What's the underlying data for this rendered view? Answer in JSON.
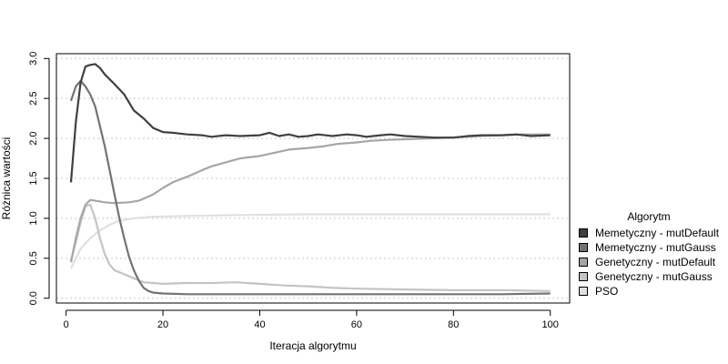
{
  "chart_data": {
    "type": "line",
    "title": "",
    "xlabel": "Iteracja algorytmu",
    "ylabel": "Różnica wartości",
    "xlim": [
      -2,
      104
    ],
    "ylim": [
      -0.06,
      3.06
    ],
    "xticks": [
      0,
      20,
      40,
      60,
      80,
      100
    ],
    "yticks": [
      0.0,
      0.5,
      1.0,
      1.5,
      2.0,
      2.5,
      3.0
    ],
    "ytick_labels": [
      "0.0",
      "0.5",
      "1.0",
      "1.5",
      "2.0",
      "2.5",
      "3.0"
    ],
    "grid": "horizontal dotted",
    "legend": {
      "title": "Algorytm",
      "placement": "right",
      "entries": [
        {
          "label": "Memetyczny - mutDefault",
          "color": "#404040"
        },
        {
          "label": "Memetyczny - mutGauss",
          "color": "#737373"
        },
        {
          "label": "Genetyczny - mutDefault",
          "color": "#a6a6a6"
        },
        {
          "label": "Genetyczny - mutGauss",
          "color": "#c4c4c4"
        },
        {
          "label": "PSO",
          "color": "#e0e0e0"
        }
      ]
    },
    "series": [
      {
        "name": "Memetyczny - mutDefault",
        "color": "#404040",
        "points": [
          [
            1,
            1.45
          ],
          [
            2,
            2.2
          ],
          [
            3,
            2.7
          ],
          [
            4,
            2.9
          ],
          [
            5,
            2.92
          ],
          [
            6,
            2.93
          ],
          [
            7,
            2.88
          ],
          [
            8,
            2.8
          ],
          [
            10,
            2.68
          ],
          [
            12,
            2.55
          ],
          [
            13,
            2.45
          ],
          [
            14,
            2.35
          ],
          [
            16,
            2.25
          ],
          [
            18,
            2.13
          ],
          [
            20,
            2.08
          ],
          [
            22,
            2.07
          ],
          [
            25,
            2.05
          ],
          [
            28,
            2.04
          ],
          [
            30,
            2.02
          ],
          [
            33,
            2.04
          ],
          [
            36,
            2.03
          ],
          [
            40,
            2.04
          ],
          [
            42,
            2.07
          ],
          [
            44,
            2.03
          ],
          [
            46,
            2.05
          ],
          [
            48,
            2.02
          ],
          [
            50,
            2.03
          ],
          [
            52,
            2.05
          ],
          [
            55,
            2.03
          ],
          [
            58,
            2.05
          ],
          [
            60,
            2.04
          ],
          [
            62,
            2.02
          ],
          [
            65,
            2.04
          ],
          [
            67,
            2.05
          ],
          [
            70,
            2.03
          ],
          [
            73,
            2.02
          ],
          [
            76,
            2.01
          ],
          [
            80,
            2.01
          ],
          [
            83,
            2.03
          ],
          [
            86,
            2.04
          ],
          [
            90,
            2.04
          ],
          [
            93,
            2.05
          ],
          [
            96,
            2.03
          ],
          [
            100,
            2.04
          ]
        ]
      },
      {
        "name": "Memetyczny - mutGauss",
        "color": "#737373",
        "points": [
          [
            1,
            2.47
          ],
          [
            2,
            2.65
          ],
          [
            3,
            2.72
          ],
          [
            4,
            2.65
          ],
          [
            5,
            2.55
          ],
          [
            6,
            2.4
          ],
          [
            7,
            2.15
          ],
          [
            8,
            1.9
          ],
          [
            9,
            1.6
          ],
          [
            10,
            1.3
          ],
          [
            11,
            1.0
          ],
          [
            12,
            0.75
          ],
          [
            13,
            0.52
          ],
          [
            14,
            0.35
          ],
          [
            15,
            0.22
          ],
          [
            16,
            0.13
          ],
          [
            17,
            0.09
          ],
          [
            18,
            0.07
          ],
          [
            20,
            0.06
          ],
          [
            25,
            0.05
          ],
          [
            30,
            0.05
          ],
          [
            40,
            0.05
          ],
          [
            50,
            0.05
          ],
          [
            60,
            0.05
          ],
          [
            70,
            0.05
          ],
          [
            80,
            0.05
          ],
          [
            90,
            0.05
          ],
          [
            100,
            0.06
          ]
        ]
      },
      {
        "name": "Genetyczny - mutDefault",
        "color": "#a6a6a6",
        "points": [
          [
            1,
            0.45
          ],
          [
            2,
            0.75
          ],
          [
            3,
            1.0
          ],
          [
            4,
            1.17
          ],
          [
            5,
            1.23
          ],
          [
            6,
            1.22
          ],
          [
            8,
            1.2
          ],
          [
            10,
            1.19
          ],
          [
            13,
            1.2
          ],
          [
            15,
            1.22
          ],
          [
            18,
            1.3
          ],
          [
            20,
            1.38
          ],
          [
            22,
            1.45
          ],
          [
            25,
            1.52
          ],
          [
            28,
            1.6
          ],
          [
            30,
            1.65
          ],
          [
            33,
            1.7
          ],
          [
            36,
            1.75
          ],
          [
            40,
            1.78
          ],
          [
            43,
            1.82
          ],
          [
            46,
            1.86
          ],
          [
            50,
            1.88
          ],
          [
            53,
            1.9
          ],
          [
            56,
            1.93
          ],
          [
            60,
            1.95
          ],
          [
            63,
            1.97
          ],
          [
            66,
            1.98
          ],
          [
            70,
            1.99
          ],
          [
            75,
            2.0
          ],
          [
            80,
            2.01
          ],
          [
            85,
            2.03
          ],
          [
            90,
            2.04
          ],
          [
            95,
            2.05
          ],
          [
            100,
            2.05
          ]
        ]
      },
      {
        "name": "Genetyczny - mutGauss",
        "color": "#c4c4c4",
        "points": [
          [
            1,
            0.47
          ],
          [
            2,
            0.7
          ],
          [
            3,
            0.95
          ],
          [
            4,
            1.15
          ],
          [
            5,
            1.17
          ],
          [
            6,
            1.0
          ],
          [
            7,
            0.75
          ],
          [
            8,
            0.55
          ],
          [
            9,
            0.42
          ],
          [
            10,
            0.35
          ],
          [
            12,
            0.3
          ],
          [
            14,
            0.25
          ],
          [
            16,
            0.2
          ],
          [
            18,
            0.19
          ],
          [
            20,
            0.18
          ],
          [
            25,
            0.19
          ],
          [
            30,
            0.19
          ],
          [
            35,
            0.2
          ],
          [
            40,
            0.18
          ],
          [
            45,
            0.16
          ],
          [
            50,
            0.15
          ],
          [
            55,
            0.13
          ],
          [
            60,
            0.12
          ],
          [
            70,
            0.11
          ],
          [
            80,
            0.1
          ],
          [
            90,
            0.1
          ],
          [
            100,
            0.09
          ]
        ]
      },
      {
        "name": "PSO",
        "color": "#e0e0e0",
        "points": [
          [
            1,
            0.37
          ],
          [
            2,
            0.5
          ],
          [
            3,
            0.62
          ],
          [
            5,
            0.75
          ],
          [
            7,
            0.85
          ],
          [
            9,
            0.92
          ],
          [
            11,
            0.97
          ],
          [
            14,
            1.0
          ],
          [
            18,
            1.02
          ],
          [
            25,
            1.03
          ],
          [
            35,
            1.04
          ],
          [
            50,
            1.05
          ],
          [
            70,
            1.05
          ],
          [
            100,
            1.05
          ]
        ]
      }
    ]
  }
}
